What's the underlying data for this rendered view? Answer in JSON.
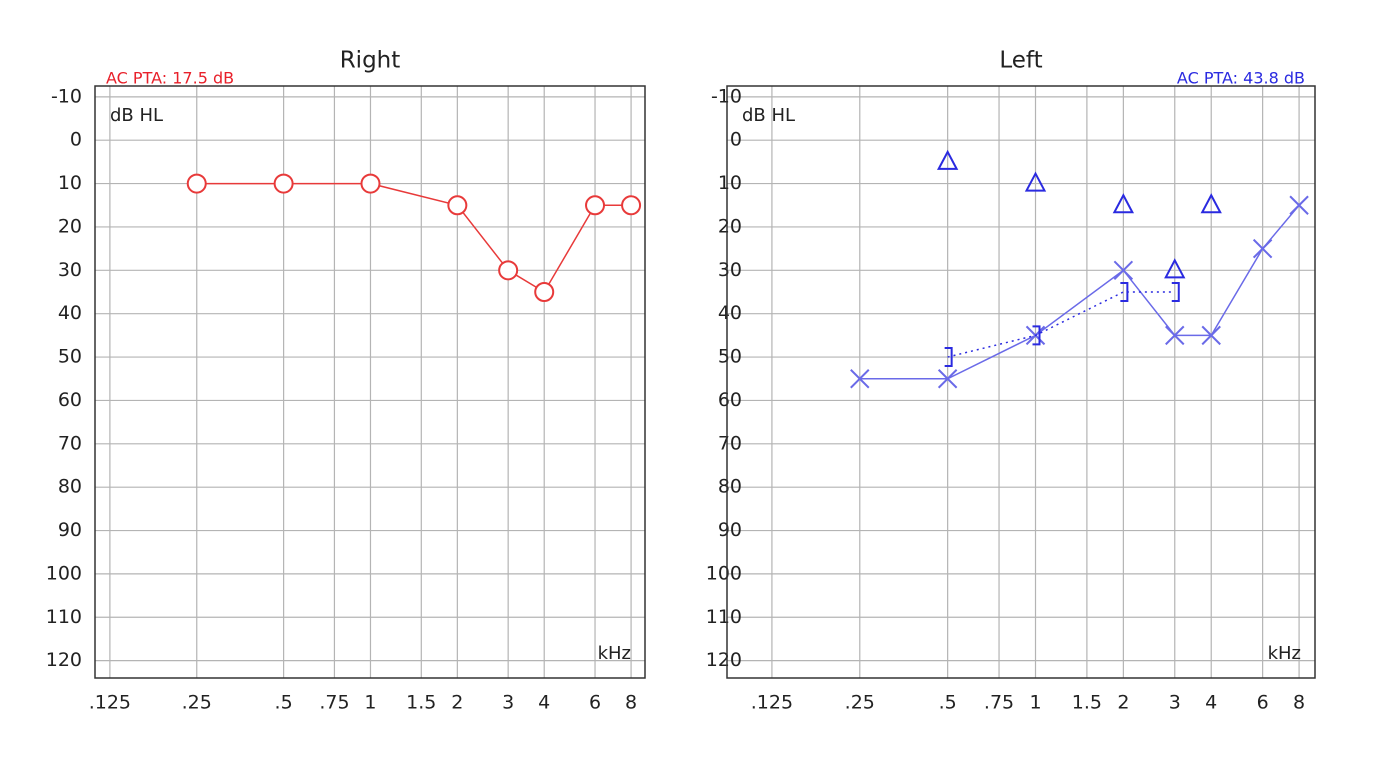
{
  "chart_data": [
    {
      "type": "line",
      "title": "Right",
      "xscale": "log",
      "grid": true,
      "y_unit": "dB HL",
      "x_unit": "kHz",
      "annotation": {
        "text": "AC PTA: 17.5 dB",
        "color": "#e8202a",
        "corner": "left"
      },
      "xlim": [
        0.111,
        8.94
      ],
      "ylim": [
        -12.5,
        124
      ],
      "xticks": [
        {
          "value": 0.125,
          "label": ".125"
        },
        {
          "value": 0.25,
          "label": ".25"
        },
        {
          "value": 0.5,
          "label": ".5"
        },
        {
          "value": 0.75,
          "label": ".75"
        },
        1,
        {
          "value": 1.5,
          "label": "1.5"
        },
        2,
        3,
        4,
        6,
        8
      ],
      "yticks": [
        -10,
        0,
        10,
        20,
        30,
        40,
        50,
        60,
        70,
        80,
        90,
        100,
        110,
        120
      ],
      "series": [
        {
          "marker": "circle",
          "line": "solid",
          "color": "#e83a3a",
          "x": [
            0.25,
            0.5,
            1,
            2,
            3,
            4,
            6,
            8
          ],
          "values": [
            10,
            10,
            10,
            15,
            30,
            35,
            15,
            15
          ]
        }
      ]
    },
    {
      "type": "line",
      "title": "Left",
      "xscale": "log",
      "grid": true,
      "y_unit": "dB HL",
      "x_unit": "kHz",
      "annotation": {
        "text": "AC PTA: 43.8 dB",
        "color": "#2a2ae0",
        "corner": "right"
      },
      "xlim": [
        0.0877,
        9.07
      ],
      "ylim": [
        -12.5,
        124
      ],
      "xticks": [
        {
          "value": 0.125,
          "label": ".125"
        },
        {
          "value": 0.25,
          "label": ".25"
        },
        {
          "value": 0.5,
          "label": ".5"
        },
        {
          "value": 0.75,
          "label": ".75"
        },
        1,
        {
          "value": 1.5,
          "label": "1.5"
        },
        2,
        3,
        4,
        6,
        8
      ],
      "yticks": [
        -10,
        0,
        10,
        20,
        30,
        40,
        50,
        60,
        70,
        80,
        90,
        100,
        110,
        120
      ],
      "series": [
        {
          "marker": "x",
          "line": "solid",
          "color": "#6a6ae8",
          "x": [
            0.25,
            0.5,
            1,
            2,
            3,
            4,
            6,
            8
          ],
          "values": [
            55,
            55,
            45,
            30,
            45,
            45,
            25,
            15
          ]
        },
        {
          "marker": "triangle",
          "line": "none",
          "color": "#2a2ae0",
          "x": [
            0.5,
            1,
            2,
            3,
            4
          ],
          "values": [
            5,
            10,
            15,
            30,
            15
          ]
        },
        {
          "marker": "bracket",
          "line": "dotted",
          "color": "#2a2ae0",
          "x": [
            0.5,
            1,
            2,
            3
          ],
          "values": [
            50,
            45,
            35,
            35
          ]
        }
      ]
    }
  ]
}
